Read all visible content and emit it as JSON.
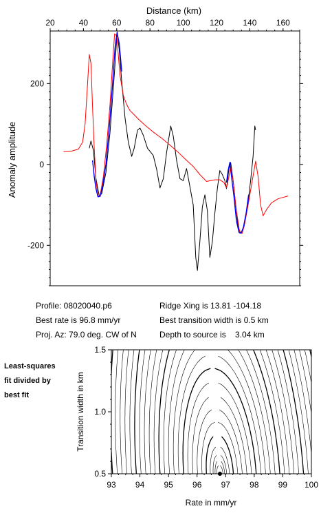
{
  "info": {
    "profile": "Profile: 08020040.p6",
    "best_rate": "Best rate is 96.8 mm/yr",
    "proj_az": "Proj. Az: 79.0 deg. CW of N",
    "ridge_xing": "Ridge Xing is 13.81 -104.18",
    "best_width": "Best transition width is 0.5 km",
    "depth": "Depth to source is    3.04 km"
  },
  "side_note": [
    "Least-squares",
    "fit divided by",
    "best fit"
  ],
  "colors": {
    "observed": "#000000",
    "model": "#ff0000",
    "fit": "#0000ff",
    "contour": "#000000"
  },
  "chart_data": [
    {
      "type": "line",
      "xlabel": "Distance (km)",
      "ylabel": "Anomaly amplitude",
      "xlim": [
        20,
        170
      ],
      "ylim": [
        -300,
        330
      ],
      "xticks": [
        20,
        40,
        60,
        80,
        100,
        120,
        140,
        160
      ],
      "yticks": [
        -200,
        0,
        200
      ],
      "x_axis_position": "top",
      "series": [
        {
          "key": "observed",
          "color": "#000000",
          "points": [
            [
              43.5,
              40
            ],
            [
              44.5,
              58
            ],
            [
              46,
              35
            ],
            [
              47.5,
              -35
            ],
            [
              49.5,
              -78
            ],
            [
              51,
              -72
            ],
            [
              53.5,
              -20
            ],
            [
              56,
              80
            ],
            [
              58.5,
              220
            ],
            [
              60.3,
              328
            ],
            [
              61.5,
              285
            ],
            [
              63,
              205
            ],
            [
              65,
              115
            ],
            [
              67,
              55
            ],
            [
              69,
              20
            ],
            [
              70.5,
              40
            ],
            [
              72.5,
              85
            ],
            [
              74,
              90
            ],
            [
              76,
              72
            ],
            [
              78.5,
              40
            ],
            [
              80.5,
              30
            ],
            [
              82,
              22
            ],
            [
              84,
              -12
            ],
            [
              86,
              -58
            ],
            [
              88,
              -35
            ],
            [
              90,
              30
            ],
            [
              92.5,
              95
            ],
            [
              94,
              70
            ],
            [
              96,
              10
            ],
            [
              98,
              -35
            ],
            [
              100,
              -40
            ],
            [
              102,
              -10
            ],
            [
              104,
              -55
            ],
            [
              106,
              -100
            ],
            [
              107.5,
              -230
            ],
            [
              108.5,
              -262
            ],
            [
              110,
              -190
            ],
            [
              111.5,
              -105
            ],
            [
              113,
              -75
            ],
            [
              114.5,
              -115
            ],
            [
              116,
              -230
            ],
            [
              117.5,
              -190
            ],
            [
              119,
              -120
            ],
            [
              120.5,
              -60
            ],
            [
              122,
              -15
            ],
            [
              123.5,
              -25
            ],
            [
              125,
              -40
            ],
            [
              126,
              -60
            ],
            [
              127.5,
              -10
            ],
            [
              128.5,
              5
            ],
            [
              130,
              -40
            ],
            [
              131.5,
              -100
            ],
            [
              133,
              -155
            ],
            [
              134.5,
              -170
            ],
            [
              136.5,
              -155
            ],
            [
              138.5,
              -110
            ],
            [
              140.5,
              -40
            ],
            [
              142,
              20
            ],
            [
              143,
              95
            ],
            [
              143.5,
              85
            ]
          ]
        },
        {
          "key": "model",
          "color": "#ff0000",
          "points": [
            [
              28,
              32
            ],
            [
              33,
              33
            ],
            [
              37,
              38
            ],
            [
              39.5,
              55
            ],
            [
              41,
              100
            ],
            [
              42.5,
              200
            ],
            [
              43.5,
              272
            ],
            [
              44.5,
              250
            ],
            [
              45.5,
              140
            ],
            [
              46.5,
              40
            ],
            [
              47.5,
              -40
            ],
            [
              48.7,
              -78
            ],
            [
              50,
              -77
            ],
            [
              52,
              -30
            ],
            [
              54,
              50
            ],
            [
              56,
              150
            ],
            [
              57.5,
              250
            ],
            [
              58.7,
              323
            ],
            [
              60,
              318
            ],
            [
              62,
              220
            ],
            [
              64,
              170
            ],
            [
              66,
              148
            ],
            [
              68,
              133
            ],
            [
              70,
              125
            ],
            [
              73,
              112
            ],
            [
              77,
              97
            ],
            [
              82,
              80
            ],
            [
              87,
              65
            ],
            [
              92,
              48
            ],
            [
              97,
              30
            ],
            [
              102,
              10
            ],
            [
              106,
              -5
            ],
            [
              110,
              -25
            ],
            [
              114,
              -42
            ],
            [
              119,
              -38
            ],
            [
              122,
              -38
            ],
            [
              124.5,
              -45
            ],
            [
              126,
              -58
            ],
            [
              127.5,
              -30
            ],
            [
              128.5,
              -5
            ],
            [
              130,
              -40
            ],
            [
              132,
              -115
            ],
            [
              134,
              -170
            ],
            [
              135.5,
              -170
            ],
            [
              137,
              -145
            ],
            [
              139,
              -100
            ],
            [
              141.5,
              -40
            ],
            [
              143.5,
              8
            ],
            [
              145,
              -30
            ],
            [
              146.5,
              -100
            ],
            [
              148,
              -127
            ],
            [
              150,
              -112
            ],
            [
              153,
              -95
            ],
            [
              157,
              -85
            ],
            [
              163,
              -78
            ]
          ]
        },
        {
          "key": "fit",
          "color": "#0000ff",
          "points": [
            [
              45.5,
              10
            ],
            [
              46.5,
              -30
            ],
            [
              47.5,
              -60
            ],
            [
              48.7,
              -80
            ],
            [
              50,
              -79
            ],
            [
              51.5,
              -55
            ],
            [
              53.5,
              0
            ],
            [
              55.5,
              90
            ],
            [
              57.5,
              200
            ],
            [
              59,
              290
            ],
            [
              60.2,
              326
            ],
            [
              61.5,
              300
            ],
            [
              63,
              230
            ],
            [
              -1,
              -1
            ],
            [
              126,
              -45
            ],
            [
              127,
              -15
            ],
            [
              128,
              5
            ],
            [
              129,
              -30
            ],
            [
              130.5,
              -80
            ],
            [
              132,
              -140
            ],
            [
              133.5,
              -168
            ],
            [
              134.8,
              -170
            ],
            [
              136.2,
              -155
            ],
            [
              137.8,
              -120
            ],
            [
              139.3,
              -75
            ]
          ]
        }
      ]
    },
    {
      "type": "contour",
      "xlabel": "Rate in mm/yr",
      "ylabel": "Transition width in km",
      "xlim": [
        93,
        100
      ],
      "ylim": [
        0.5,
        1.5
      ],
      "xticks": [
        "93",
        "94",
        "95",
        "96",
        "97",
        "98",
        "99",
        "100"
      ],
      "yticks": [
        "0.5",
        "1.0",
        "1.5"
      ],
      "best_fit": {
        "rate": 96.8,
        "width": 0.5
      },
      "contour_levels": [
        1.02,
        1.05,
        1.1,
        1.2,
        1.4,
        1.7,
        2.1,
        2.6,
        3.2,
        3.9,
        4.7,
        5.6,
        6.6,
        7.7,
        8.9,
        10.2,
        11.6,
        13.1,
        14.7,
        16.4,
        18.2,
        20.1,
        22.1,
        24.2,
        26.4,
        28.7
      ]
    }
  ]
}
